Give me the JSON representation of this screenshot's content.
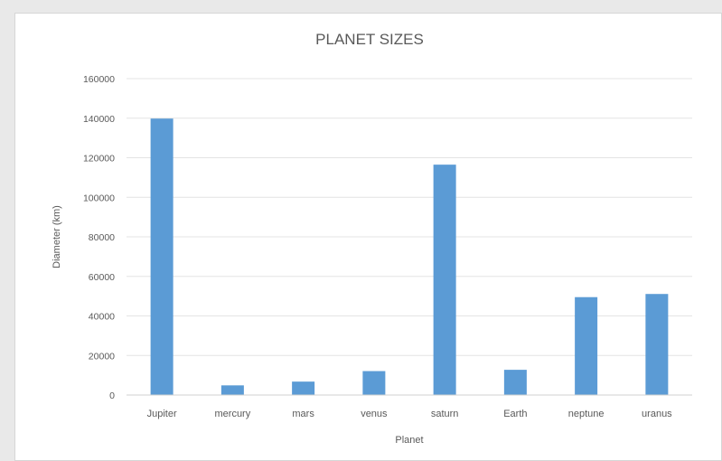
{
  "chart_data": {
    "type": "bar",
    "title": "PLANET SIZES",
    "xlabel": "Planet",
    "ylabel": "Diameter (km)",
    "categories": [
      "Jupiter",
      "mercury",
      "mars",
      "venus",
      "saturn",
      "Earth",
      "neptune",
      "uranus"
    ],
    "values": [
      139800,
      4880,
      6780,
      12100,
      116500,
      12750,
      49500,
      51100
    ],
    "ylim": [
      0,
      160000
    ],
    "yticks": [
      0,
      20000,
      40000,
      60000,
      80000,
      100000,
      120000,
      140000,
      160000
    ],
    "grid": true,
    "bar_color": "#5b9bd5",
    "gridline_color": "#e4e4e4"
  }
}
